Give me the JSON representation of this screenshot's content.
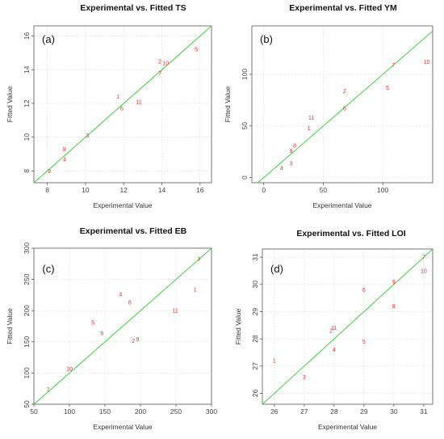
{
  "chart_data": [
    {
      "type": "scatter",
      "panel_label": "(a)",
      "title": "Experimental vs. Fitted TS",
      "xlabel": "Experimental Value",
      "ylabel": "Fitted Value",
      "xlim": [
        7.3,
        16.6
      ],
      "ylim": [
        7.3,
        16.6
      ],
      "xticks": [
        8,
        10,
        12,
        14,
        16
      ],
      "yticks": [
        8,
        10,
        12,
        14,
        16
      ],
      "grid": true,
      "fit_line": "y = x",
      "points": [
        {
          "label": "1",
          "x": 11.7,
          "y": 12.4
        },
        {
          "label": "2",
          "x": 13.9,
          "y": 14.5
        },
        {
          "label": "3",
          "x": 10.1,
          "y": 10.1
        },
        {
          "label": "4",
          "x": 8.9,
          "y": 8.7
        },
        {
          "label": "5",
          "x": 15.8,
          "y": 15.2
        },
        {
          "label": "6",
          "x": 11.9,
          "y": 11.7
        },
        {
          "label": "7",
          "x": 13.9,
          "y": 13.8
        },
        {
          "label": "8",
          "x": 8.9,
          "y": 9.3
        },
        {
          "label": "9",
          "x": 8.1,
          "y": 8.0
        },
        {
          "label": "10",
          "x": 14.2,
          "y": 14.4
        },
        {
          "label": "11",
          "x": 12.8,
          "y": 12.1
        }
      ]
    },
    {
      "type": "scatter",
      "panel_label": "(b)",
      "title": "Experimental vs. Fitted YM",
      "xlabel": "Experimental Value",
      "ylabel": "Fitted Value",
      "xlim": [
        -10,
        142
      ],
      "ylim": [
        -5,
        147
      ],
      "xticks": [
        0,
        50,
        100
      ],
      "yticks": [
        0,
        50,
        100
      ],
      "grid": true,
      "fit_line": "y = x",
      "points": [
        {
          "label": "1",
          "x": 38,
          "y": 48
        },
        {
          "label": "2",
          "x": 68,
          "y": 84
        },
        {
          "label": "3",
          "x": 23,
          "y": 14
        },
        {
          "label": "4",
          "x": 15,
          "y": 9
        },
        {
          "label": "5",
          "x": 104,
          "y": 87
        },
        {
          "label": "6",
          "x": 68,
          "y": 67
        },
        {
          "label": "7",
          "x": 109,
          "y": 109
        },
        {
          "label": "8",
          "x": 26,
          "y": 31
        },
        {
          "label": "9",
          "x": 23,
          "y": 26
        },
        {
          "label": "10",
          "x": 137,
          "y": 112
        },
        {
          "label": "11",
          "x": 40,
          "y": 58
        }
      ]
    },
    {
      "type": "scatter",
      "panel_label": "(c)",
      "title": "Experimental vs. Fitted EB",
      "xlabel": "Experimental Value",
      "ylabel": "Fitted Value",
      "xlim": [
        50,
        300
      ],
      "ylim": [
        50,
        300
      ],
      "xticks": [
        50,
        100,
        150,
        200,
        250,
        300
      ],
      "yticks": [
        50,
        100,
        150,
        200,
        250,
        300
      ],
      "grid": true,
      "fit_line": "y = x",
      "points": [
        {
          "label": "1",
          "x": 277,
          "y": 234
        },
        {
          "label": "2",
          "x": 190,
          "y": 152
        },
        {
          "label": "3",
          "x": 282,
          "y": 283
        },
        {
          "label": "4",
          "x": 172,
          "y": 226
        },
        {
          "label": "5",
          "x": 133,
          "y": 181
        },
        {
          "label": "6",
          "x": 146,
          "y": 164
        },
        {
          "label": "7",
          "x": 70,
          "y": 73
        },
        {
          "label": "8",
          "x": 185,
          "y": 213
        },
        {
          "label": "9",
          "x": 196,
          "y": 154
        },
        {
          "label": "10",
          "x": 100,
          "y": 107
        },
        {
          "label": "11",
          "x": 249,
          "y": 200
        }
      ]
    },
    {
      "type": "scatter",
      "panel_label": "(d)",
      "title": "Experimental vs. Fitted LOI",
      "xlabel": "Experimental Value",
      "ylabel": "Fitted Value",
      "xlim": [
        25.6,
        31.3
      ],
      "ylim": [
        25.6,
        31.3
      ],
      "xticks": [
        26,
        27,
        28,
        29,
        30,
        31
      ],
      "yticks": [
        26,
        27,
        28,
        29,
        30,
        31
      ],
      "grid": true,
      "fit_line": "y = x",
      "points": [
        {
          "label": "1",
          "x": 26.0,
          "y": 27.2
        },
        {
          "label": "2",
          "x": 27.9,
          "y": 28.3
        },
        {
          "label": "3",
          "x": 27.0,
          "y": 26.6
        },
        {
          "label": "4",
          "x": 28.0,
          "y": 27.6
        },
        {
          "label": "5",
          "x": 29.0,
          "y": 27.9
        },
        {
          "label": "6",
          "x": 29.0,
          "y": 29.8
        },
        {
          "label": "7",
          "x": 31.0,
          "y": 31.0
        },
        {
          "label": "8",
          "x": 30.0,
          "y": 29.2
        },
        {
          "label": "9",
          "x": 30.0,
          "y": 30.1
        },
        {
          "label": "10",
          "x": 31.0,
          "y": 30.5
        },
        {
          "label": "11",
          "x": 28.0,
          "y": 28.4
        }
      ]
    }
  ]
}
